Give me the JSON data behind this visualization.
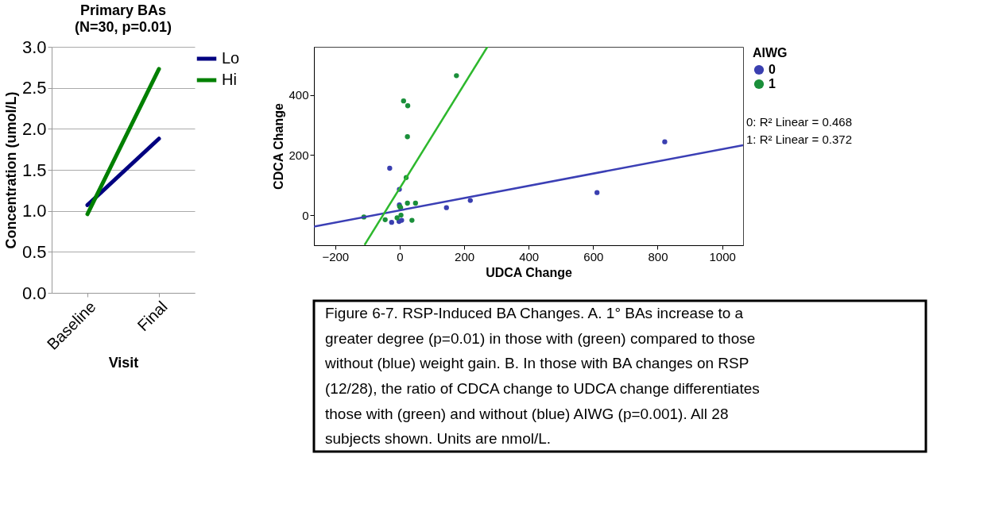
{
  "chart_data": [
    {
      "type": "line",
      "title": "Primary BAs",
      "subtitle": "(N=30, p=0.01)",
      "xlabel": "Visit",
      "ylabel": "Concentration (umol/L)",
      "categories": [
        "Baseline",
        "Final"
      ],
      "series": [
        {
          "name": "Lo",
          "color": "#000080",
          "values": [
            1.07,
            1.88
          ]
        },
        {
          "name": "Hi",
          "color": "#008000",
          "values": [
            0.96,
            2.73
          ]
        }
      ],
      "ylim": [
        0,
        3
      ],
      "yticks": [
        {
          "value": 0,
          "label": "0.0"
        },
        {
          "value": 0.5,
          "label": "0.5"
        },
        {
          "value": 1,
          "label": "1.0"
        },
        {
          "value": 1.5,
          "label": "1.5"
        },
        {
          "value": 2,
          "label": "2.0"
        },
        {
          "value": 2.5,
          "label": "2.5"
        },
        {
          "value": 3,
          "label": "3.0"
        }
      ],
      "grid": "y",
      "legend": "right"
    },
    {
      "type": "scatter",
      "xlabel": "UDCA Change",
      "ylabel": "CDCA Change",
      "legend_title": "AIWG",
      "series": [
        {
          "name": "0",
          "color": "#3a3fb0",
          "marker": "circle",
          "x": [
            822,
            612,
            219,
            145,
            -31,
            -1,
            -1,
            -25,
            -2,
            6
          ],
          "values": [
            244,
            75,
            49,
            25,
            156,
            86,
            34,
            -24,
            -21,
            -17
          ]
        },
        {
          "name": "1",
          "color": "#1a8f3a",
          "marker": "circle",
          "x": [
            176,
            12,
            25,
            24,
            20,
            24,
            49,
            0,
            3,
            4,
            -8,
            -45,
            38,
            -111
          ],
          "values": [
            464,
            380,
            364,
            261,
            125,
            40,
            40,
            29,
            25,
            0,
            -9,
            -15,
            -17,
            -6
          ]
        },
        {
          "type": "line",
          "color": "#3b3fb5",
          "x": [
            -266,
            1065
          ],
          "values": [
            -38,
            233
          ]
        },
        {
          "type": "line",
          "color": "#2db82d",
          "x": [
            -109,
            272
          ],
          "values": [
            -99,
            560
          ]
        }
      ],
      "xlim": [
        -266,
        1065
      ],
      "ylim": [
        -100,
        560
      ],
      "xticks": [
        -200,
        0,
        200,
        400,
        600,
        800,
        {
          "value": 1000,
          "label": "1000"
        }
      ],
      "yticks": [
        0,
        200,
        400
      ],
      "grid": false,
      "legend": "right",
      "annotations": [
        "0: R² Linear = 0.468",
        "1: R² Linear = 0.372"
      ]
    },
    {
      "type": "other",
      "annotations": [
        "Figure 6-7. RSP-Induced BA Changes. A. 1° BAs increase to a greater degree (p=0.01) in those with (green) compared to those without (blue) weight gain. B. In those with BA changes on RSP (12/28), the ratio of CDCA change to UDCA change differentiates those with (green) and without (blue) AIWG (p=0.001). All 28 subjects shown. Units are nmol/L."
      ]
    }
  ]
}
